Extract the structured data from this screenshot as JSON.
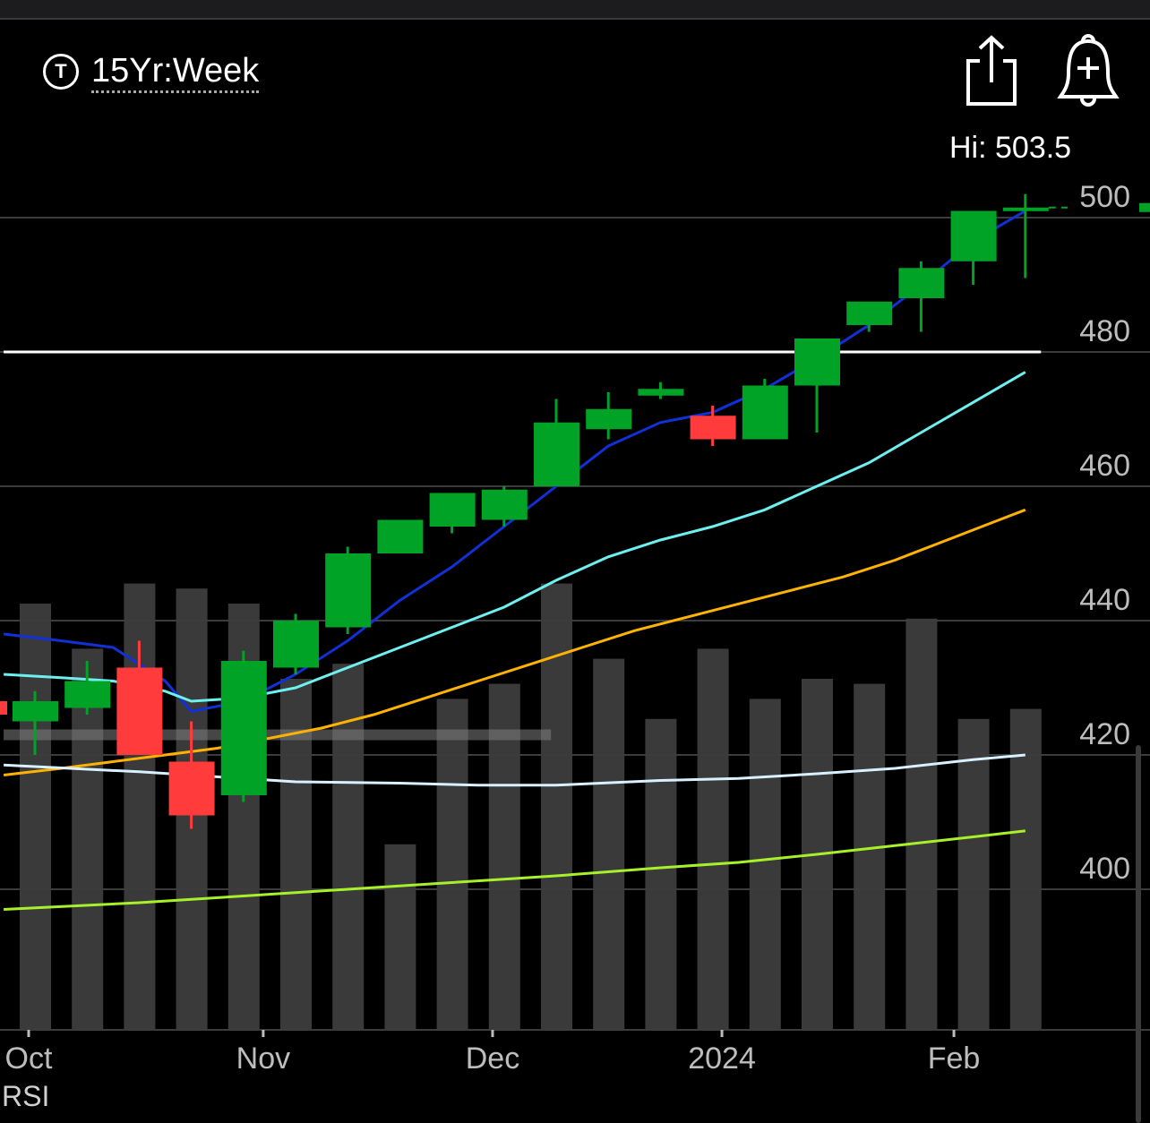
{
  "header": {
    "timeframe_icon": "T",
    "timeframe_label": "15Yr:Week",
    "share_icon": "share-icon",
    "alert_icon": "add-alert-bell-icon",
    "hi_label": "Hi: 503.5"
  },
  "colors": {
    "up": "#00a325",
    "down": "#ff3b3b",
    "volume": "#3a3a3a",
    "grid": "#3c3c3c",
    "ma_blue": "#1030d8",
    "ma_cyan": "#6ef0f0",
    "ma_orange": "#ffb300",
    "ma_white": "#d8f0ff",
    "ma_lime": "#a8f02a",
    "level_line": "#ffffff",
    "axis_text": "#bdbdbd"
  },
  "rsi_label": "RSI",
  "chart_data": {
    "type": "candlestick",
    "title": "",
    "ylim": [
      380,
      510
    ],
    "y_ticks": [
      400,
      420,
      440,
      460,
      480,
      500
    ],
    "x_tick_labels": [
      {
        "label": "Oct",
        "week": 0
      },
      {
        "label": "Nov",
        "week": 4.5
      },
      {
        "label": "Dec",
        "week": 8.9
      },
      {
        "label": "2024",
        "week": 13.3
      },
      {
        "label": "Feb",
        "week": 17.75
      }
    ],
    "candles": [
      {
        "week": 0,
        "open": 425,
        "high": 429.5,
        "low": 420,
        "close": 428
      },
      {
        "week": 1,
        "open": 427,
        "high": 434,
        "low": 426,
        "close": 431
      },
      {
        "week": 2,
        "open": 433,
        "high": 437,
        "low": 420,
        "close": 420
      },
      {
        "week": 3,
        "open": 419,
        "high": 425,
        "low": 409,
        "close": 411
      },
      {
        "week": 4,
        "open": 414,
        "high": 435.5,
        "low": 413,
        "close": 434
      },
      {
        "week": 5,
        "open": 433,
        "high": 441,
        "low": 432,
        "close": 440
      },
      {
        "week": 6,
        "open": 439,
        "high": 451,
        "low": 438,
        "close": 450
      },
      {
        "week": 7,
        "open": 450,
        "high": 455,
        "low": 450,
        "close": 455
      },
      {
        "week": 8,
        "open": 454,
        "high": 459,
        "low": 453,
        "close": 459
      },
      {
        "week": 9,
        "open": 455,
        "high": 460,
        "low": 454,
        "close": 459.5
      },
      {
        "week": 10,
        "open": 460,
        "high": 473,
        "low": 460,
        "close": 469.5
      },
      {
        "week": 11,
        "open": 468.5,
        "high": 474,
        "low": 467,
        "close": 471.5
      },
      {
        "week": 12,
        "open": 473.5,
        "high": 475.5,
        "low": 473,
        "close": 474.5
      },
      {
        "week": 13,
        "open": 470.5,
        "high": 472,
        "low": 466,
        "close": 467
      },
      {
        "week": 14,
        "open": 467,
        "high": 476,
        "low": 467,
        "close": 475
      },
      {
        "week": 15,
        "open": 475,
        "high": 482,
        "low": 468,
        "close": 482
      },
      {
        "week": 16,
        "open": 484,
        "high": 486.5,
        "low": 483,
        "close": 487.5
      },
      {
        "week": 17,
        "open": 488,
        "high": 493.5,
        "low": 483,
        "close": 492.5
      },
      {
        "week": 18,
        "open": 493.5,
        "high": 501,
        "low": 490,
        "close": 501
      },
      {
        "week": 19,
        "open": 501,
        "high": 503.5,
        "low": 491,
        "close": 501.5
      }
    ],
    "last_price_marker": 501.5,
    "volume": {
      "scale_max": 100,
      "values": [
        85,
        76,
        89,
        88,
        85,
        70,
        73,
        37,
        66,
        69,
        89,
        74,
        62,
        76,
        66,
        70,
        69,
        82,
        62,
        64
      ]
    },
    "horizontal_levels": [
      {
        "value": 480,
        "color": "#ffffff",
        "from_week": -0.6,
        "to_week": 19.3
      },
      {
        "value": 423,
        "color": "#808080",
        "from_week": -0.6,
        "to_week": 9.9
      }
    ],
    "moving_averages": [
      {
        "color": "#1030d8",
        "points": [
          [
            -0.6,
            438
          ],
          [
            0.5,
            437
          ],
          [
            1.5,
            436
          ],
          [
            2.5,
            431
          ],
          [
            3,
            426.5
          ],
          [
            4,
            428
          ],
          [
            5,
            432
          ],
          [
            6,
            437
          ],
          [
            7,
            443
          ],
          [
            8,
            448
          ],
          [
            9,
            454
          ],
          [
            10,
            460
          ],
          [
            11,
            466
          ],
          [
            12,
            469.5
          ],
          [
            13,
            471
          ],
          [
            14,
            474.5
          ],
          [
            15,
            479
          ],
          [
            16,
            484
          ],
          [
            17,
            490
          ],
          [
            18,
            496.5
          ],
          [
            19,
            501
          ]
        ]
      },
      {
        "color": "#6ef0f0",
        "points": [
          [
            -0.6,
            432
          ],
          [
            0.5,
            431.5
          ],
          [
            1.5,
            431
          ],
          [
            2.5,
            429.5
          ],
          [
            3,
            428
          ],
          [
            4,
            428.5
          ],
          [
            5,
            430
          ],
          [
            6,
            433
          ],
          [
            7,
            436
          ],
          [
            8,
            439
          ],
          [
            9,
            442
          ],
          [
            10,
            446
          ],
          [
            11,
            449.5
          ],
          [
            12,
            452
          ],
          [
            13,
            454
          ],
          [
            14,
            456.5
          ],
          [
            15,
            460
          ],
          [
            16,
            463.5
          ],
          [
            17,
            468
          ],
          [
            18,
            472.5
          ],
          [
            19,
            477
          ]
        ]
      },
      {
        "color": "#ffb300",
        "points": [
          [
            -0.6,
            417
          ],
          [
            0.5,
            418
          ],
          [
            1.5,
            419
          ],
          [
            2.5,
            420
          ],
          [
            3.5,
            421
          ],
          [
            4.5,
            422.5
          ],
          [
            5.5,
            424
          ],
          [
            6.5,
            426
          ],
          [
            7.5,
            428.5
          ],
          [
            8.5,
            431
          ],
          [
            9.5,
            433.5
          ],
          [
            10.5,
            436
          ],
          [
            11.5,
            438.5
          ],
          [
            12.5,
            440.5
          ],
          [
            13.5,
            442.5
          ],
          [
            14.5,
            444.5
          ],
          [
            15.5,
            446.5
          ],
          [
            16.5,
            449
          ],
          [
            17.5,
            452
          ],
          [
            18.5,
            455
          ],
          [
            19,
            456.5
          ]
        ]
      },
      {
        "color": "#d8f0ff",
        "points": [
          [
            -0.6,
            418.5
          ],
          [
            2,
            417.5
          ],
          [
            4,
            416.5
          ],
          [
            5,
            416
          ],
          [
            7,
            415.8
          ],
          [
            8.5,
            415.5
          ],
          [
            10,
            415.5
          ],
          [
            12,
            416.2
          ],
          [
            13.5,
            416.5
          ],
          [
            15,
            417.2
          ],
          [
            16.5,
            418
          ],
          [
            18,
            419.3
          ],
          [
            19,
            420
          ]
        ]
      },
      {
        "color": "#a8f02a",
        "points": [
          [
            -0.6,
            397
          ],
          [
            2,
            398
          ],
          [
            4,
            399
          ],
          [
            6,
            400
          ],
          [
            8,
            401
          ],
          [
            10,
            402
          ],
          [
            12,
            403.2
          ],
          [
            13.5,
            404
          ],
          [
            15,
            405.2
          ],
          [
            16.5,
            406.5
          ],
          [
            18,
            407.8
          ],
          [
            19,
            408.7
          ]
        ]
      }
    ]
  }
}
